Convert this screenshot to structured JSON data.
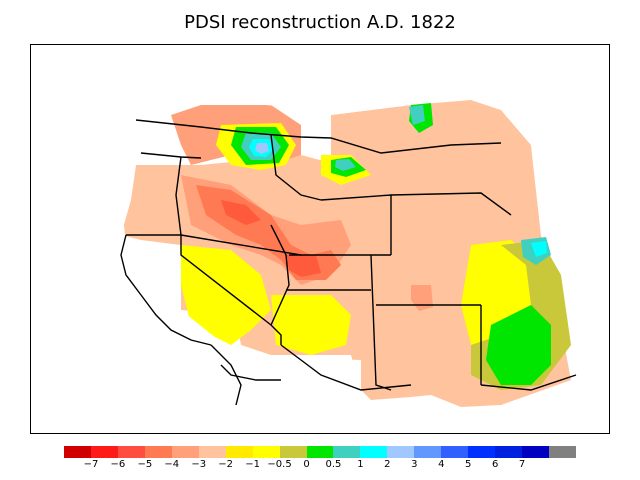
{
  "title": "PDSI reconstruction A.D. 1822",
  "legend": {
    "colors": [
      "#d10000",
      "#ff1a1a",
      "#ff4d40",
      "#ff7a52",
      "#ffa07a",
      "#ffc39e",
      "#ffea00",
      "#ffff00",
      "#c8c83a",
      "#00e600",
      "#40d0c0",
      "#00ffff",
      "#a0c8ff",
      "#6098ff",
      "#3060ff",
      "#0030ff",
      "#0020e0",
      "#0000c0",
      "#808080"
    ],
    "labels": [
      "−7",
      "−6",
      "−5",
      "−4",
      "−3",
      "−2",
      "−1",
      "−0.5",
      "0",
      "0.5",
      "1",
      "2",
      "3",
      "4",
      "5",
      "6",
      "7"
    ]
  },
  "palette": {
    "red_dark": "#ff5a3c",
    "red": "#ff7a52",
    "salmon": "#ffa07a",
    "peach": "#ffc39e",
    "yellow": "#ffff00",
    "olive": "#c8c83a",
    "green": "#00e600",
    "teal": "#40d0c0",
    "cyan": "#00ffff",
    "lightblue": "#a0c8ff"
  }
}
